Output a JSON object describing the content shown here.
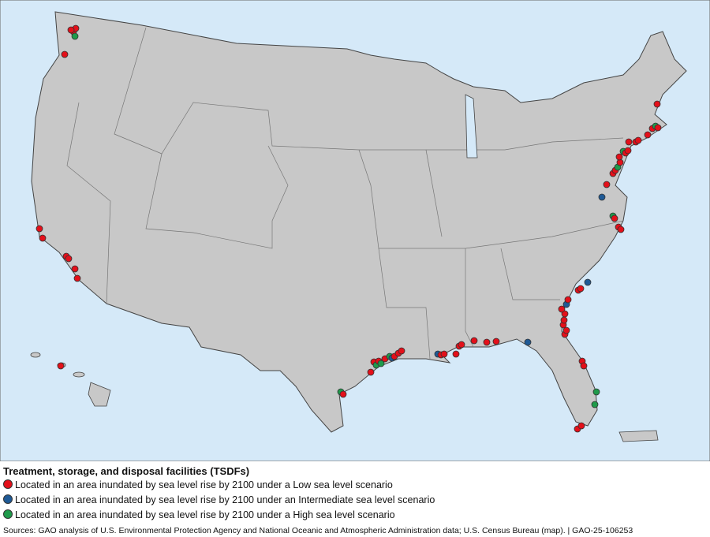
{
  "legend": {
    "title": "Treatment, storage, and disposal facilities (TSDFs)",
    "items": [
      {
        "label": "Located in an area inundated by sea level rise by 2100 under a Low sea level scenario",
        "color": "#e3101a"
      },
      {
        "label": "Located in an area inundated by sea level rise by 2100 under an Intermediate sea level scenario",
        "color": "#1f5a96"
      },
      {
        "label": "Located in an area inundated by sea level rise by 2100 under a High sea level scenario",
        "color": "#1f9a4b"
      }
    ]
  },
  "source": "Sources: GAO analysis of U.S. Environmental Protection Agency and National Oceanic and Atmospheric Administration data; U.S. Census Bureau (map).  |  GAO-25-106253"
}
